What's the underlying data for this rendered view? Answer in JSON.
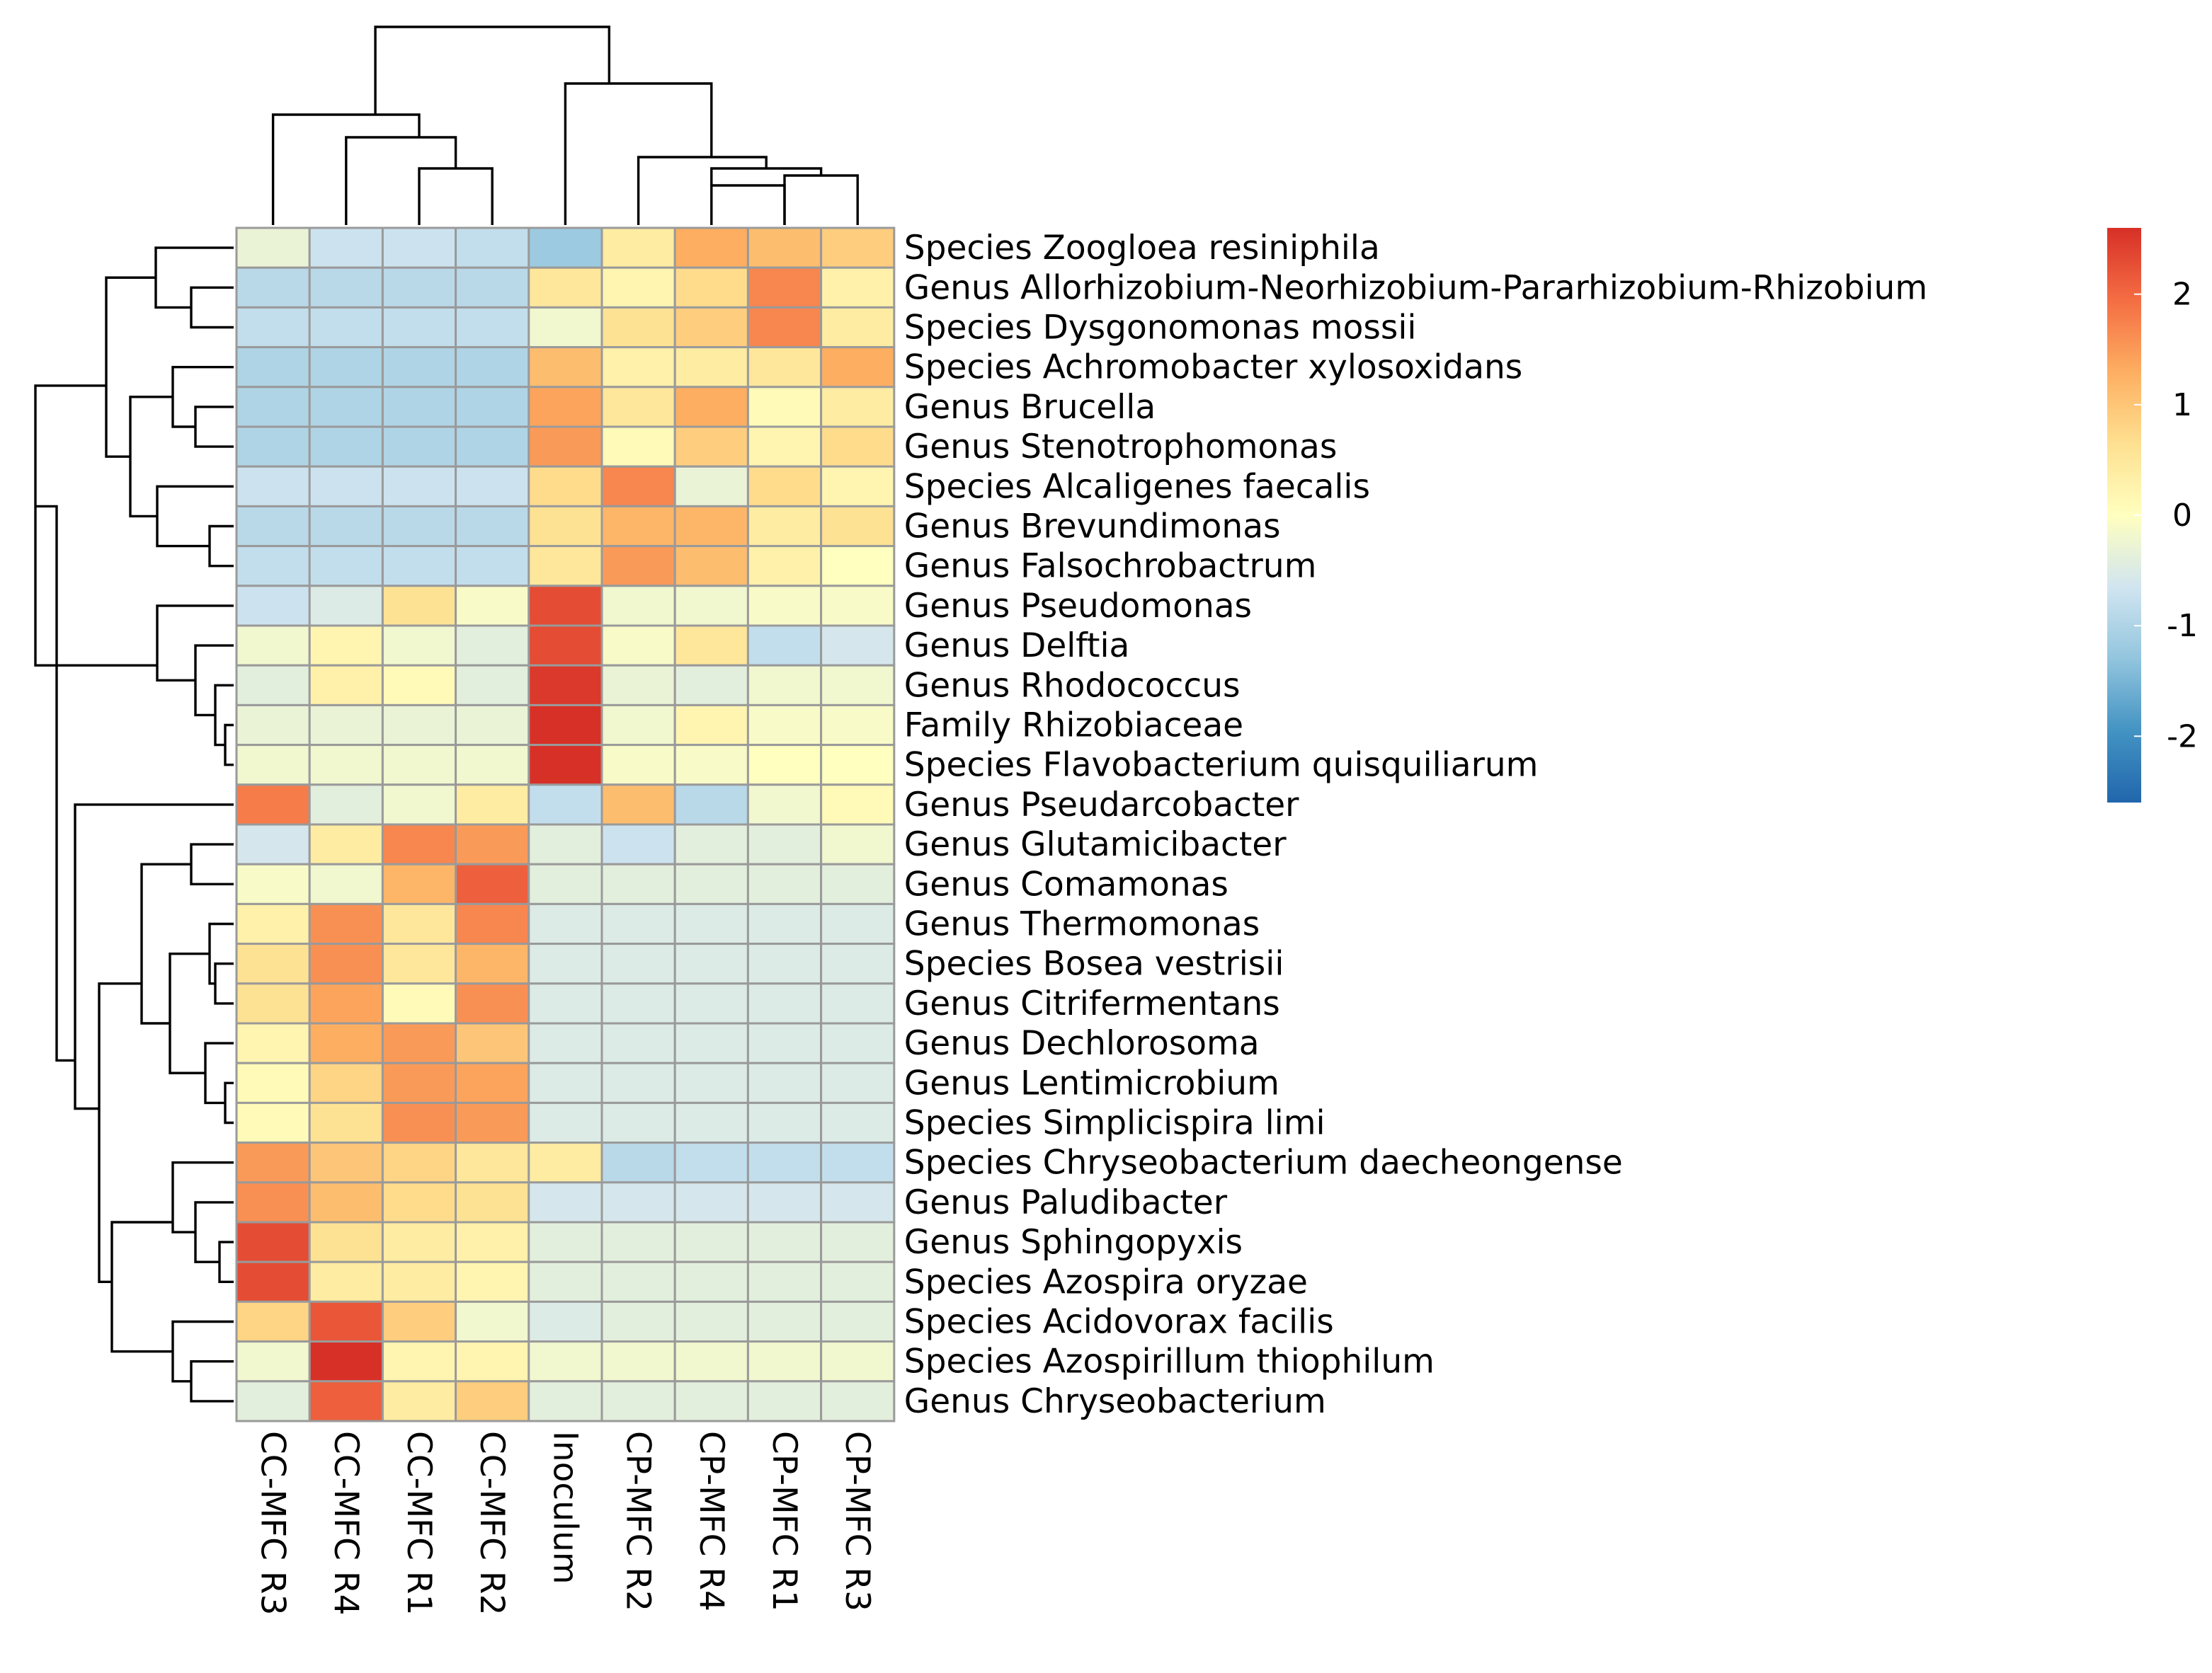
{
  "chart_data": {
    "type": "heatmap",
    "title": "",
    "columns": [
      "CC-MFC R3",
      "CC-MFC R4",
      "CC-MFC R1",
      "CC-MFC R2",
      "Inoculum",
      "CP-MFC R2",
      "CP-MFC R4",
      "CP-MFC R1",
      "CP-MFC R3"
    ],
    "rows": [
      "Species Zoogloea resiniphila",
      "Genus Allorhizobium-Neorhizobium-Pararhizobium-Rhizobium",
      "Species Dysgonomonas mossii",
      "Species Achromobacter xylosoxidans",
      "Genus Brucella",
      "Genus Stenotrophomonas",
      "Species Alcaligenes faecalis",
      "Genus Brevundimonas",
      "Genus Falsochrobactrum",
      "Genus Pseudomonas",
      "Genus Delftia",
      "Genus Rhodococcus",
      "Family Rhizobiaceae",
      "Species Flavobacterium quisquiliarum",
      "Genus Pseudarcobacter",
      "Genus Glutamicibacter",
      "Genus Comamonas",
      "Genus Thermomonas",
      "Species Bosea vestrisii",
      "Genus Citrifermentans",
      "Genus Dechlorosoma",
      "Genus Lentimicrobium",
      "Species Simplicispira limi",
      "Species Chryseobacterium daecheongense",
      "Genus Paludibacter",
      "Genus Sphingopyxis",
      "Species Azospira oryzae",
      "Species Acidovorax facilis",
      "Species Azospirillum thiophilum",
      "Genus Chryseobacterium"
    ],
    "values": [
      [
        -0.3,
        -0.7,
        -0.7,
        -0.8,
        -1.2,
        0.4,
        1.3,
        1.1,
        0.9
      ],
      [
        -0.9,
        -0.9,
        -0.9,
        -0.9,
        0.5,
        0.2,
        0.7,
        1.7,
        0.3
      ],
      [
        -0.8,
        -0.8,
        -0.8,
        -0.8,
        -0.2,
        0.6,
        0.9,
        1.7,
        0.4
      ],
      [
        -1.0,
        -1.0,
        -1.0,
        -1.0,
        1.1,
        0.3,
        0.4,
        0.5,
        1.3
      ],
      [
        -1.0,
        -1.0,
        -1.0,
        -1.0,
        1.4,
        0.5,
        1.3,
        0.1,
        0.4
      ],
      [
        -1.0,
        -1.0,
        -1.0,
        -1.0,
        1.5,
        0.1,
        0.9,
        0.2,
        0.7
      ],
      [
        -0.7,
        -0.7,
        -0.7,
        -0.7,
        0.7,
        1.7,
        -0.3,
        0.7,
        0.2
      ],
      [
        -0.9,
        -0.9,
        -0.9,
        -0.9,
        0.6,
        1.2,
        1.2,
        0.4,
        0.6
      ],
      [
        -0.8,
        -0.8,
        -0.8,
        -0.8,
        0.5,
        1.5,
        1.1,
        0.3,
        0.0
      ],
      [
        -0.7,
        -0.5,
        0.6,
        -0.1,
        2.3,
        -0.2,
        -0.2,
        -0.1,
        -0.1
      ],
      [
        -0.2,
        0.2,
        -0.2,
        -0.4,
        2.3,
        -0.1,
        0.5,
        -0.8,
        -0.6
      ],
      [
        -0.4,
        0.3,
        0.1,
        -0.4,
        2.5,
        -0.3,
        -0.4,
        -0.2,
        -0.2
      ],
      [
        -0.3,
        -0.3,
        -0.3,
        -0.3,
        2.6,
        -0.2,
        0.2,
        -0.1,
        -0.1
      ],
      [
        -0.2,
        -0.2,
        -0.2,
        -0.2,
        2.6,
        -0.1,
        -0.1,
        0.0,
        0.0
      ],
      [
        1.8,
        -0.4,
        -0.2,
        0.4,
        -0.8,
        1.1,
        -0.9,
        -0.2,
        0.1
      ],
      [
        -0.6,
        0.4,
        1.7,
        1.5,
        -0.4,
        -0.7,
        -0.4,
        -0.4,
        -0.2
      ],
      [
        -0.1,
        -0.2,
        1.2,
        2.1,
        -0.4,
        -0.4,
        -0.4,
        -0.4,
        -0.4
      ],
      [
        0.3,
        1.6,
        0.5,
        1.7,
        -0.5,
        -0.5,
        -0.5,
        -0.5,
        -0.5
      ],
      [
        0.6,
        1.6,
        0.5,
        1.2,
        -0.5,
        -0.5,
        -0.5,
        -0.5,
        -0.5
      ],
      [
        0.6,
        1.4,
        0.1,
        1.6,
        -0.5,
        -0.5,
        -0.5,
        -0.5,
        -0.5
      ],
      [
        0.2,
        1.3,
        1.5,
        1.0,
        -0.5,
        -0.5,
        -0.5,
        -0.5,
        -0.5
      ],
      [
        0.1,
        0.8,
        1.5,
        1.4,
        -0.5,
        -0.5,
        -0.5,
        -0.5,
        -0.5
      ],
      [
        0.1,
        0.6,
        1.6,
        1.5,
        -0.5,
        -0.5,
        -0.5,
        -0.5,
        -0.5
      ],
      [
        1.5,
        1.0,
        0.8,
        0.5,
        0.4,
        -0.9,
        -0.8,
        -0.8,
        -0.8
      ],
      [
        1.6,
        1.1,
        0.7,
        0.6,
        -0.6,
        -0.6,
        -0.6,
        -0.6,
        -0.6
      ],
      [
        2.3,
        0.6,
        0.4,
        0.3,
        -0.4,
        -0.4,
        -0.4,
        -0.4,
        -0.4
      ],
      [
        2.3,
        0.4,
        0.4,
        0.2,
        -0.4,
        -0.4,
        -0.4,
        -0.4,
        -0.4
      ],
      [
        0.8,
        2.2,
        0.9,
        -0.2,
        -0.5,
        -0.4,
        -0.4,
        -0.4,
        -0.4
      ],
      [
        -0.2,
        2.6,
        0.2,
        0.2,
        -0.2,
        -0.2,
        -0.2,
        -0.2,
        -0.2
      ],
      [
        -0.4,
        2.1,
        0.4,
        0.9,
        -0.4,
        -0.4,
        -0.4,
        -0.4,
        -0.4
      ]
    ],
    "color_scale": {
      "min": -2.6,
      "max": 2.6,
      "colors": [
        "#2166ac",
        "#4393c3",
        "#92c5de",
        "#d1e5f0",
        "#ffffbf",
        "#fee090",
        "#fdae61",
        "#f46d43",
        "#d73027"
      ],
      "ticks": [
        2,
        1,
        0,
        -1,
        -2
      ],
      "tick_labels": [
        "2",
        "1",
        "0",
        "-1",
        "-2"
      ]
    },
    "column_dendrogram": true,
    "row_dendrogram": true
  }
}
